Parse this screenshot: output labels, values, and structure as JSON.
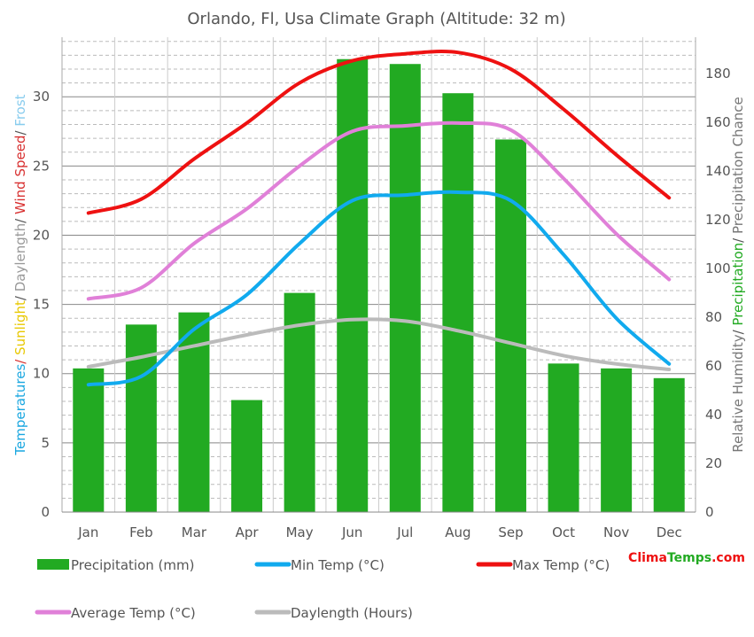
{
  "chart_data": {
    "type": "bar",
    "title": "Orlando, Fl, Usa Climate Graph (Altitude: 32 m)",
    "categories": [
      "Jan",
      "Feb",
      "Mar",
      "Apr",
      "May",
      "Jun",
      "Jul",
      "Aug",
      "Sep",
      "Oct",
      "Nov",
      "Dec"
    ],
    "left_axis": {
      "label_parts": [
        {
          "text": "Temperatures",
          "color": "#1aa7e0"
        },
        {
          "text": "/ ",
          "color": "#d83030"
        },
        {
          "text": "Sunlight",
          "color": "#e8c800"
        },
        {
          "text": "/ ",
          "color": "#555555"
        },
        {
          "text": "Daylength",
          "color": "#999999"
        },
        {
          "text": "/ ",
          "color": "#555555"
        },
        {
          "text": "Wind Speed",
          "color": "#d83030"
        },
        {
          "text": "/ ",
          "color": "#555555"
        },
        {
          "text": "Frost",
          "color": "#88ccee"
        }
      ],
      "ylim": [
        0,
        34.3
      ],
      "ticks": [
        0,
        5,
        10,
        15,
        20,
        25,
        30
      ]
    },
    "right_axis": {
      "label_parts": [
        {
          "text": "Relative Humidity",
          "color": "#777777"
        },
        {
          "text": "/ ",
          "color": "#555555"
        },
        {
          "text": "Precipitation",
          "color": "#22aa22"
        },
        {
          "text": "/ ",
          "color": "#555555"
        },
        {
          "text": "Precipitation Chance",
          "color": "#777777"
        }
      ],
      "ylim": [
        0,
        195
      ],
      "ticks": [
        0,
        20,
        40,
        60,
        80,
        100,
        120,
        140,
        160,
        180
      ]
    },
    "grid": true,
    "legend_position": "bottom",
    "series": [
      {
        "name": "Precipitation (mm)",
        "kind": "bar",
        "axis": "right",
        "color": "#22aa22",
        "values": [
          59,
          77,
          82,
          46,
          90,
          186,
          184,
          172,
          153,
          61,
          59,
          55
        ]
      },
      {
        "name": "Min Temp (°C)",
        "kind": "line",
        "axis": "left",
        "color": "#11aaee",
        "values": [
          9.2,
          9.8,
          13.2,
          15.7,
          19.4,
          22.5,
          22.9,
          23.1,
          22.5,
          18.6,
          14.0,
          10.7
        ]
      },
      {
        "name": "Max Temp (°C)",
        "kind": "line",
        "axis": "left",
        "color": "#ee1111",
        "values": [
          21.6,
          22.6,
          25.5,
          28.1,
          31.0,
          32.6,
          33.1,
          33.2,
          32.0,
          29.1,
          25.8,
          22.7
        ]
      },
      {
        "name": "Average Temp (°C)",
        "kind": "line",
        "axis": "left",
        "color": "#e080d8",
        "values": [
          15.4,
          16.2,
          19.4,
          21.9,
          25.0,
          27.5,
          27.9,
          28.1,
          27.6,
          24.1,
          20.1,
          16.8
        ]
      },
      {
        "name": "Daylength (Hours)",
        "kind": "line",
        "axis": "left",
        "color": "#bbbbbb",
        "values": [
          10.5,
          11.2,
          12.0,
          12.8,
          13.5,
          13.9,
          13.8,
          13.1,
          12.2,
          11.3,
          10.7,
          10.3
        ]
      }
    ]
  },
  "brand": {
    "part1": "Clima",
    "part2": "Temps",
    "part3": ".com",
    "color1": "#ee1111",
    "color2": "#22aa22"
  }
}
